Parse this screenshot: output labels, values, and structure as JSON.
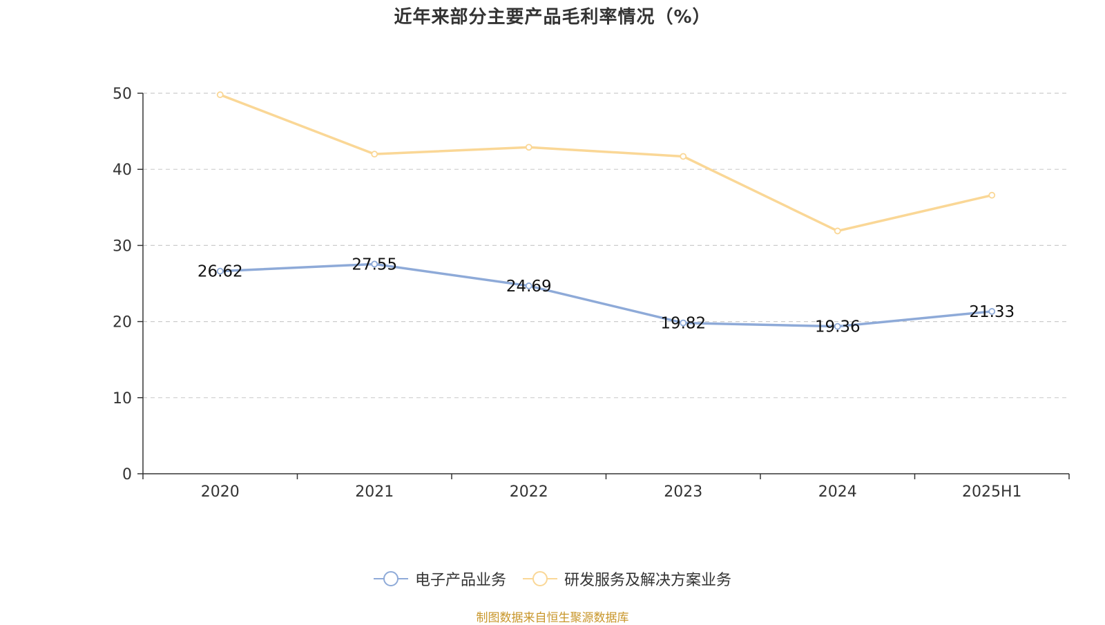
{
  "chart_data": {
    "type": "line",
    "title": "近年来部分主要产品毛利率情况（%）",
    "categories": [
      "2020",
      "2021",
      "2022",
      "2023",
      "2024",
      "2025H1"
    ],
    "ylim": [
      0,
      50
    ],
    "yticks": [
      0,
      10,
      20,
      30,
      40,
      50
    ],
    "grid": true,
    "legend_position": "bottom",
    "series": [
      {
        "name": "电子产品业务",
        "color": "#8eaad8",
        "values": [
          26.62,
          27.55,
          24.69,
          19.82,
          19.36,
          21.33
        ],
        "labels": [
          "26.62",
          "27.55",
          "24.69",
          "19.82",
          "19.36",
          "21.33"
        ]
      },
      {
        "name": "研发服务及解决方案业务",
        "color": "#fad796",
        "values": [
          49.8,
          42.0,
          42.9,
          41.7,
          31.9,
          36.6
        ]
      }
    ]
  },
  "source_note": "制图数据来自恒生聚源数据库"
}
